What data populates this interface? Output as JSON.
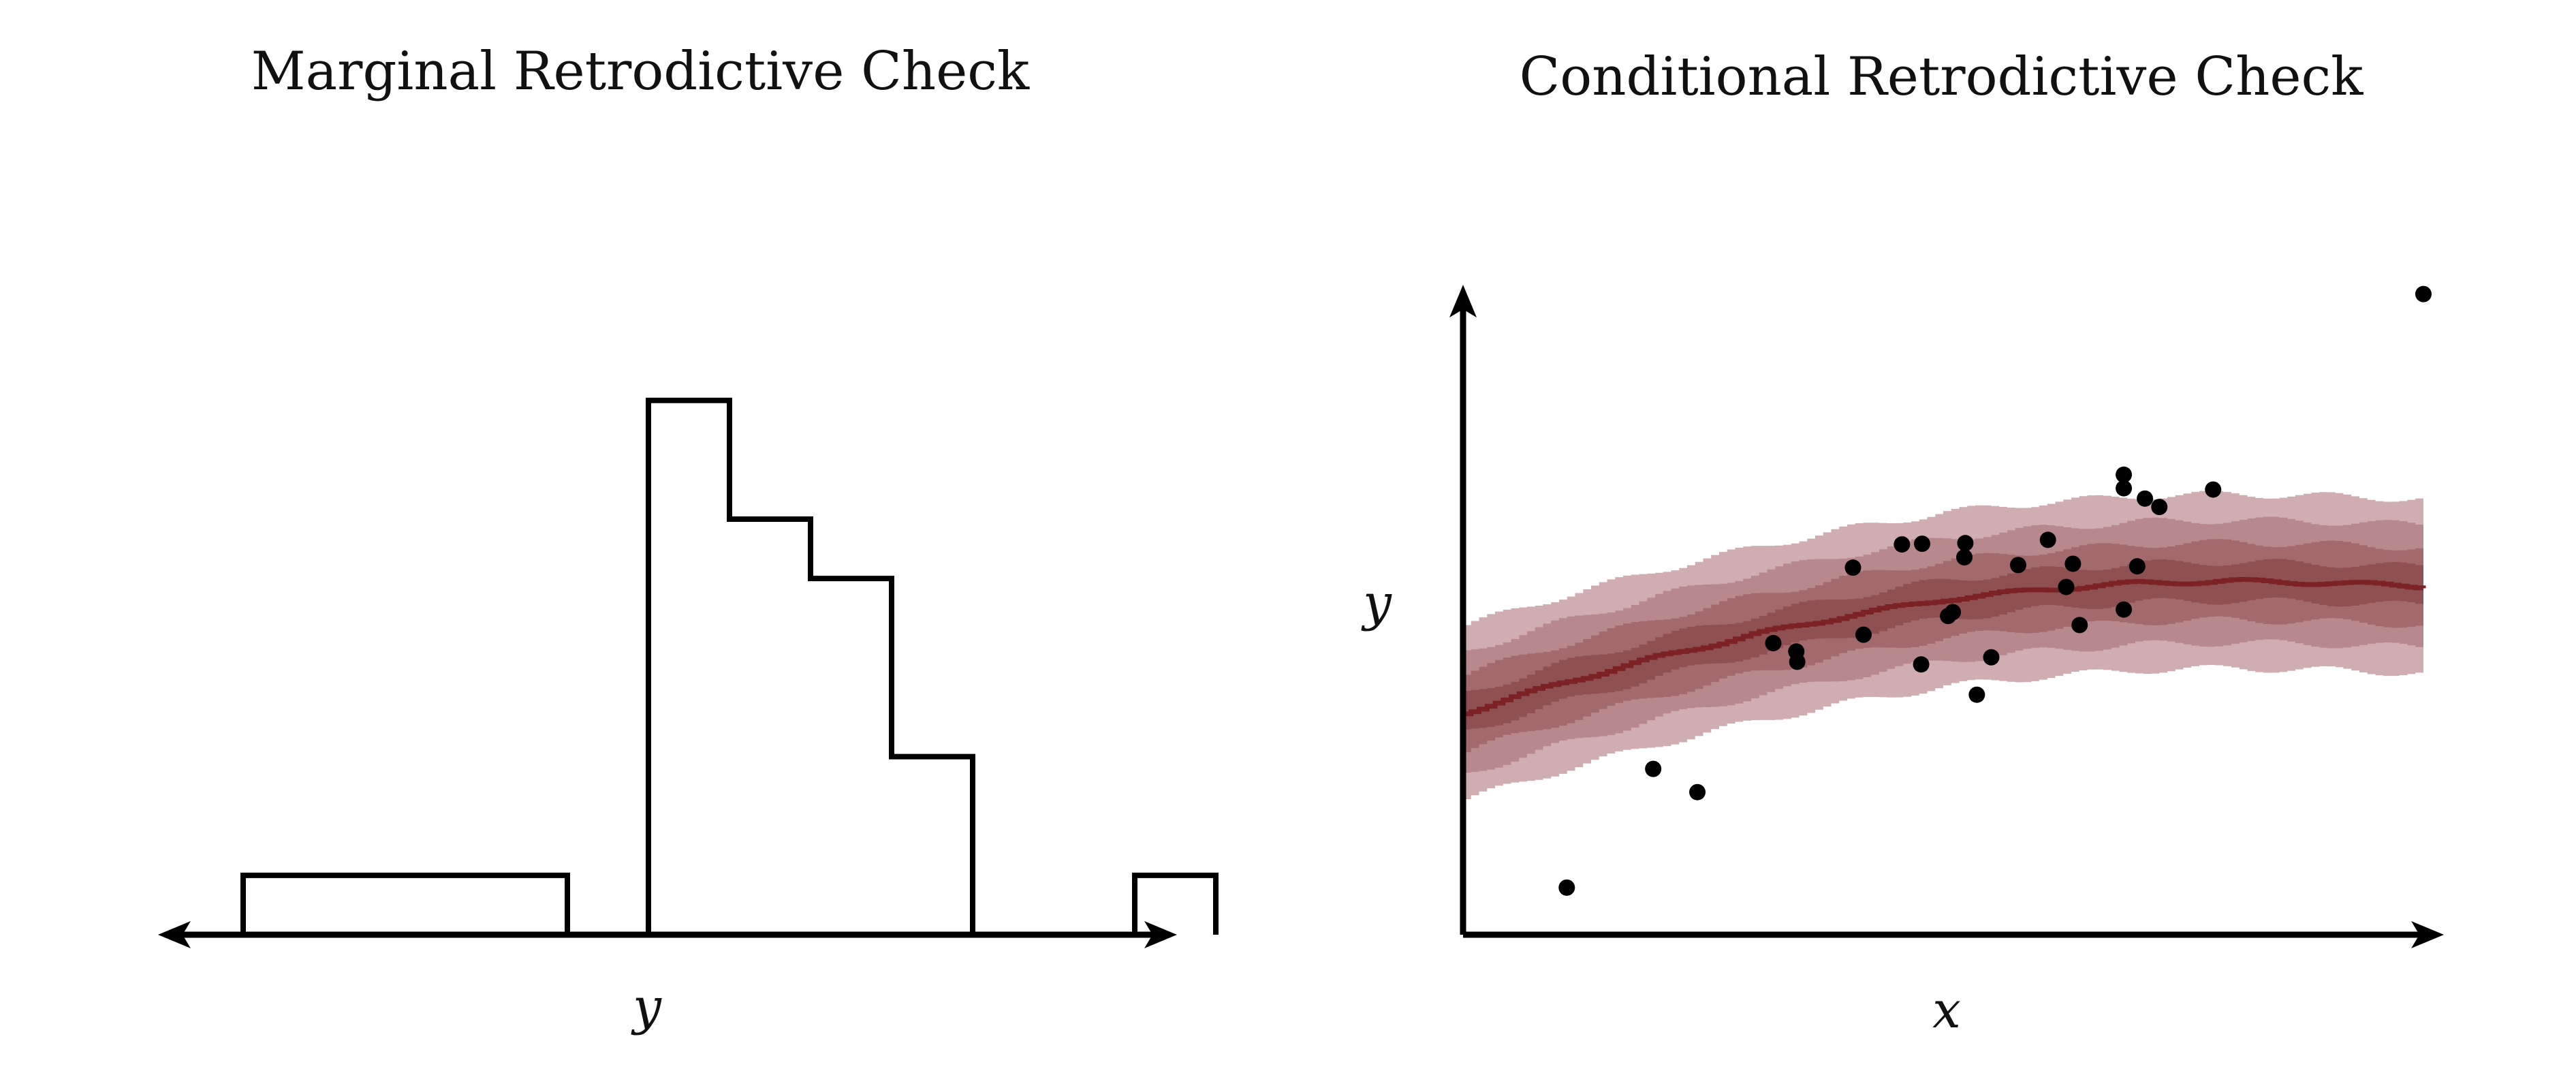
{
  "chart_data": [
    {
      "type": "bar",
      "title": "Marginal Retrodictive Check",
      "xlabel": "y",
      "ylabel": "",
      "bins": 12,
      "observed_counts": [
        1,
        1,
        1,
        1,
        0,
        9,
        7,
        6,
        3,
        0,
        0,
        1
      ],
      "retrodictive_quantiles": [
        {
          "bin": 0,
          "q10": 0,
          "q20": 0,
          "q30": 0,
          "q40": 0,
          "q50": 0,
          "q60": 0,
          "q70": 0,
          "q80": 0,
          "q90": 0
        },
        {
          "bin": 1,
          "q10": 0,
          "q20": 0,
          "q30": 0,
          "q40": 0,
          "q50": 0,
          "q60": 0,
          "q70": 0,
          "q80": 0,
          "q90": 0
        },
        {
          "bin": 2,
          "q10": 0,
          "q20": 0,
          "q30": 0,
          "q40": 0,
          "q50": 0,
          "q60": 0,
          "q70": 0,
          "q80": 0,
          "q90": 0
        },
        {
          "bin": 3,
          "q10": 0,
          "q20": 0,
          "q30": 0,
          "q40": 0,
          "q50": 0,
          "q60": 0,
          "q70": 0,
          "q80": 0,
          "q90": 0
        },
        {
          "bin": 4,
          "q10": 0,
          "q20": 0,
          "q30": 0,
          "q40": 0,
          "q50": 0,
          "q60": 0,
          "q70": 0,
          "q80": 0,
          "q90": 0
        },
        {
          "bin": 5,
          "q10": 0,
          "q20": 0,
          "q30": 0,
          "q40": 0,
          "q50": 0,
          "q60": 0,
          "q70": 0,
          "q80": 0,
          "q90": 0
        },
        {
          "bin": 6,
          "q10": 0,
          "q20": 0,
          "q30": 0,
          "q40": 0,
          "q50": 0,
          "q60": 0,
          "q70": 0,
          "q80": 0,
          "q90": 0
        },
        {
          "bin": 7,
          "q10": 0,
          "q20": 0,
          "q30": 0,
          "q40": 0,
          "q50": 0,
          "q60": 0,
          "q70": 0,
          "q80": 0,
          "q90": 0
        },
        {
          "bin": 8,
          "q10": 0,
          "q20": 0,
          "q30": 0,
          "q40": 0,
          "q50": 0,
          "q60": 0,
          "q70": 0,
          "q80": 0,
          "q90": 0
        },
        {
          "bin": 9,
          "q10": 0,
          "q20": 0,
          "q30": 0,
          "q40": 0,
          "q50": 0,
          "q60": 0,
          "q70": 0,
          "q80": 0,
          "q90": 0
        },
        {
          "bin": 10,
          "q10": 0,
          "q20": 0,
          "q30": 0,
          "q40": 0,
          "q50": 0,
          "q60": 0,
          "q70": 0,
          "q80": 0,
          "q90": 0
        },
        {
          "bin": 11,
          "q10": 0,
          "q20": 0,
          "q30": 0,
          "q40": 0,
          "q50": 0,
          "q60": 0,
          "q70": 0,
          "q80": 0,
          "q90": 0
        }
      ],
      "ylim": [
        0,
        14
      ],
      "grid": false,
      "colors": {
        "band_light": "#cfadb0",
        "band_2": "#b8898c",
        "band_3": "#a26a6d",
        "band_dark": "#8f5052",
        "median": "#7c2224",
        "observed": "#000000"
      }
    },
    {
      "type": "scatter",
      "title": "Conditional Retrodictive Check",
      "xlabel": "x",
      "ylabel": "y",
      "xlim": [
        0,
        1
      ],
      "ylim": [
        0,
        1
      ],
      "grid": false,
      "points": [
        {
          "x": 0.108,
          "y": 0.073
        },
        {
          "x": 0.198,
          "y": 0.257
        },
        {
          "x": 0.244,
          "y": 0.221
        },
        {
          "x": 0.323,
          "y": 0.452
        },
        {
          "x": 0.347,
          "y": 0.439
        },
        {
          "x": 0.348,
          "y": 0.423
        },
        {
          "x": 0.406,
          "y": 0.569
        },
        {
          "x": 0.417,
          "y": 0.465
        },
        {
          "x": 0.457,
          "y": 0.605
        },
        {
          "x": 0.478,
          "y": 0.606
        },
        {
          "x": 0.477,
          "y": 0.419
        },
        {
          "x": 0.505,
          "y": 0.494
        },
        {
          "x": 0.51,
          "y": 0.5
        },
        {
          "x": 0.522,
          "y": 0.585
        },
        {
          "x": 0.523,
          "y": 0.607
        },
        {
          "x": 0.535,
          "y": 0.372
        },
        {
          "x": 0.55,
          "y": 0.43
        },
        {
          "x": 0.578,
          "y": 0.573
        },
        {
          "x": 0.609,
          "y": 0.612
        },
        {
          "x": 0.628,
          "y": 0.539
        },
        {
          "x": 0.635,
          "y": 0.575
        },
        {
          "x": 0.642,
          "y": 0.48
        },
        {
          "x": 0.688,
          "y": 0.504
        },
        {
          "x": 0.688,
          "y": 0.692
        },
        {
          "x": 0.688,
          "y": 0.713
        },
        {
          "x": 0.702,
          "y": 0.571
        },
        {
          "x": 0.71,
          "y": 0.676
        },
        {
          "x": 0.725,
          "y": 0.663
        },
        {
          "x": 0.781,
          "y": 0.69
        },
        {
          "x": 1.0,
          "y": 0.993
        }
      ],
      "band_center": [
        {
          "x": 0.0,
          "y": 0.345
        },
        {
          "x": 0.1,
          "y": 0.39
        },
        {
          "x": 0.2,
          "y": 0.43
        },
        {
          "x": 0.3,
          "y": 0.465
        },
        {
          "x": 0.4,
          "y": 0.495
        },
        {
          "x": 0.5,
          "y": 0.52
        },
        {
          "x": 0.6,
          "y": 0.535
        },
        {
          "x": 0.7,
          "y": 0.545
        },
        {
          "x": 0.8,
          "y": 0.548
        },
        {
          "x": 0.9,
          "y": 0.545
        },
        {
          "x": 1.0,
          "y": 0.54
        }
      ],
      "band_halfwidths": [
        0.135,
        0.095,
        0.06,
        0.03
      ],
      "colors": {
        "band_light": "#cfadb0",
        "band_2": "#b8898c",
        "band_3": "#a26a6d",
        "band_dark": "#8f5052",
        "median": "#7c2224",
        "points": "#000000"
      }
    }
  ]
}
